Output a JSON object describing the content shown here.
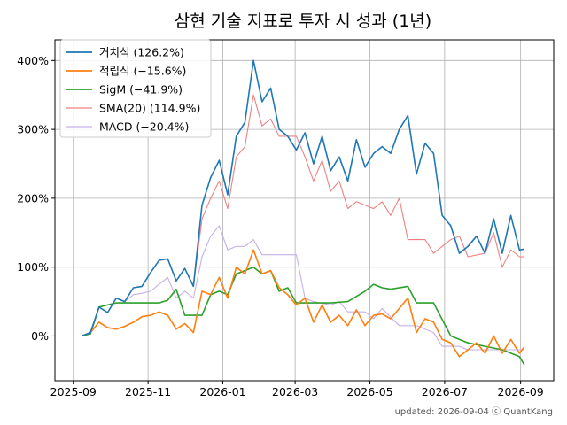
{
  "chart_data": {
    "type": "line",
    "title": "삼현 기술 지표로 투자 시 성과 (1년)",
    "xlabel": "",
    "ylabel": "",
    "x_ticks": [
      "2025-09",
      "2025-11",
      "2026-01",
      "2026-03",
      "2026-05",
      "2026-07",
      "2026-09"
    ],
    "y_ticks": [
      "0%",
      "100%",
      "200%",
      "300%",
      "400%"
    ],
    "ylim": [
      -65,
      430
    ],
    "grid": true,
    "legend_position": "top-left",
    "footer": "updated: 2026-09-04 ⓒ QuantKang",
    "series": [
      {
        "name": "거치식 (126.2%)",
        "color": "#1f77b4",
        "points": [
          [
            "2025-09-08",
            0
          ],
          [
            "2025-09-15",
            5
          ],
          [
            "2025-09-22",
            42
          ],
          [
            "2025-09-29",
            34
          ],
          [
            "2025-10-06",
            55
          ],
          [
            "2025-10-13",
            50
          ],
          [
            "2025-10-20",
            70
          ],
          [
            "2025-10-27",
            72
          ],
          [
            "2025-11-03",
            92
          ],
          [
            "2025-11-10",
            110
          ],
          [
            "2025-11-17",
            112
          ],
          [
            "2025-11-24",
            80
          ],
          [
            "2025-12-01",
            98
          ],
          [
            "2025-12-08",
            72
          ],
          [
            "2025-12-15",
            190
          ],
          [
            "2025-12-22",
            230
          ],
          [
            "2025-12-29",
            255
          ],
          [
            "2026-01-05",
            205
          ],
          [
            "2026-01-12",
            290
          ],
          [
            "2026-01-19",
            310
          ],
          [
            "2026-01-26",
            400
          ],
          [
            "2026-02-02",
            340
          ],
          [
            "2026-02-09",
            360
          ],
          [
            "2026-02-16",
            300
          ],
          [
            "2026-02-23",
            290
          ],
          [
            "2026-03-02",
            270
          ],
          [
            "2026-03-09",
            295
          ],
          [
            "2026-03-16",
            250
          ],
          [
            "2026-03-23",
            290
          ],
          [
            "2026-03-30",
            240
          ],
          [
            "2026-04-06",
            260
          ],
          [
            "2026-04-13",
            225
          ],
          [
            "2026-04-20",
            285
          ],
          [
            "2026-04-27",
            245
          ],
          [
            "2026-05-04",
            265
          ],
          [
            "2026-05-11",
            275
          ],
          [
            "2026-05-18",
            265
          ],
          [
            "2026-05-25",
            300
          ],
          [
            "2026-06-01",
            320
          ],
          [
            "2026-06-08",
            235
          ],
          [
            "2026-06-15",
            280
          ],
          [
            "2026-06-22",
            265
          ],
          [
            "2026-06-29",
            175
          ],
          [
            "2026-07-06",
            160
          ],
          [
            "2026-07-13",
            120
          ],
          [
            "2026-07-20",
            130
          ],
          [
            "2026-07-27",
            145
          ],
          [
            "2026-08-03",
            120
          ],
          [
            "2026-08-10",
            170
          ],
          [
            "2026-08-17",
            120
          ],
          [
            "2026-08-24",
            175
          ],
          [
            "2026-08-31",
            125
          ],
          [
            "2026-09-04",
            126.2
          ]
        ]
      },
      {
        "name": "적립식 (−15.6%)",
        "color": "#ff7f0e",
        "points": [
          [
            "2025-09-08",
            0
          ],
          [
            "2025-09-15",
            5
          ],
          [
            "2025-09-22",
            20
          ],
          [
            "2025-09-29",
            12
          ],
          [
            "2025-10-06",
            10
          ],
          [
            "2025-10-13",
            14
          ],
          [
            "2025-10-20",
            20
          ],
          [
            "2025-10-27",
            28
          ],
          [
            "2025-11-03",
            30
          ],
          [
            "2025-11-10",
            35
          ],
          [
            "2025-11-17",
            30
          ],
          [
            "2025-11-24",
            10
          ],
          [
            "2025-12-01",
            18
          ],
          [
            "2025-12-08",
            5
          ],
          [
            "2025-12-15",
            65
          ],
          [
            "2025-12-22",
            60
          ],
          [
            "2025-12-29",
            85
          ],
          [
            "2026-01-05",
            55
          ],
          [
            "2026-01-12",
            100
          ],
          [
            "2026-01-19",
            90
          ],
          [
            "2026-01-26",
            125
          ],
          [
            "2026-02-02",
            90
          ],
          [
            "2026-02-09",
            95
          ],
          [
            "2026-02-16",
            70
          ],
          [
            "2026-02-23",
            60
          ],
          [
            "2026-03-02",
            45
          ],
          [
            "2026-03-09",
            55
          ],
          [
            "2026-03-16",
            20
          ],
          [
            "2026-03-23",
            45
          ],
          [
            "2026-03-30",
            20
          ],
          [
            "2026-04-06",
            30
          ],
          [
            "2026-04-13",
            15
          ],
          [
            "2026-04-20",
            38
          ],
          [
            "2026-04-27",
            15
          ],
          [
            "2026-05-04",
            30
          ],
          [
            "2026-05-11",
            32
          ],
          [
            "2026-05-18",
            25
          ],
          [
            "2026-05-25",
            40
          ],
          [
            "2026-06-01",
            55
          ],
          [
            "2026-06-08",
            5
          ],
          [
            "2026-06-15",
            25
          ],
          [
            "2026-06-22",
            20
          ],
          [
            "2026-06-29",
            -5
          ],
          [
            "2026-07-06",
            -10
          ],
          [
            "2026-07-13",
            -30
          ],
          [
            "2026-07-20",
            -20
          ],
          [
            "2026-07-27",
            -10
          ],
          [
            "2026-08-03",
            -25
          ],
          [
            "2026-08-10",
            0
          ],
          [
            "2026-08-17",
            -25
          ],
          [
            "2026-08-24",
            -5
          ],
          [
            "2026-08-31",
            -25
          ],
          [
            "2026-09-04",
            -15.6
          ]
        ]
      },
      {
        "name": "SigM (−41.9%)",
        "color": "#2ca02c",
        "points": [
          [
            "2025-09-08",
            0
          ],
          [
            "2025-09-15",
            3
          ],
          [
            "2025-09-22",
            42
          ],
          [
            "2025-09-29",
            45
          ],
          [
            "2025-10-06",
            48
          ],
          [
            "2025-10-20",
            48
          ],
          [
            "2025-11-03",
            48
          ],
          [
            "2025-11-10",
            48
          ],
          [
            "2025-11-17",
            52
          ],
          [
            "2025-11-24",
            68
          ],
          [
            "2025-12-01",
            30
          ],
          [
            "2025-12-15",
            30
          ],
          [
            "2025-12-22",
            60
          ],
          [
            "2025-12-29",
            65
          ],
          [
            "2026-01-05",
            60
          ],
          [
            "2026-01-12",
            90
          ],
          [
            "2026-01-19",
            95
          ],
          [
            "2026-01-26",
            100
          ],
          [
            "2026-02-02",
            90
          ],
          [
            "2026-02-09",
            95
          ],
          [
            "2026-02-16",
            65
          ],
          [
            "2026-02-23",
            70
          ],
          [
            "2026-03-02",
            48
          ],
          [
            "2026-03-30",
            48
          ],
          [
            "2026-04-13",
            50
          ],
          [
            "2026-04-27",
            65
          ],
          [
            "2026-05-04",
            75
          ],
          [
            "2026-05-11",
            70
          ],
          [
            "2026-05-18",
            68
          ],
          [
            "2026-06-01",
            72
          ],
          [
            "2026-06-08",
            48
          ],
          [
            "2026-06-22",
            48
          ],
          [
            "2026-07-06",
            0
          ],
          [
            "2026-07-20",
            -10
          ],
          [
            "2026-08-03",
            -15
          ],
          [
            "2026-08-17",
            -20
          ],
          [
            "2026-08-31",
            -30
          ],
          [
            "2026-09-04",
            -41.9
          ]
        ]
      },
      {
        "name": "SMA(20) (114.9%)",
        "color": "#f08080",
        "points": [
          [
            "2025-09-08",
            0
          ],
          [
            "2025-09-15",
            5
          ],
          [
            "2025-09-22",
            42
          ],
          [
            "2025-09-29",
            34
          ],
          [
            "2025-10-06",
            55
          ],
          [
            "2025-10-13",
            50
          ],
          [
            "2025-10-20",
            70
          ],
          [
            "2025-10-27",
            72
          ],
          [
            "2025-11-03",
            92
          ],
          [
            "2025-11-10",
            110
          ],
          [
            "2025-11-17",
            112
          ],
          [
            "2025-11-24",
            80
          ],
          [
            "2025-12-01",
            98
          ],
          [
            "2025-12-08",
            72
          ],
          [
            "2025-12-15",
            170
          ],
          [
            "2025-12-22",
            200
          ],
          [
            "2025-12-29",
            225
          ],
          [
            "2026-01-05",
            185
          ],
          [
            "2026-01-12",
            260
          ],
          [
            "2026-01-19",
            275
          ],
          [
            "2026-01-26",
            350
          ],
          [
            "2026-02-02",
            305
          ],
          [
            "2026-02-09",
            315
          ],
          [
            "2026-02-16",
            290
          ],
          [
            "2026-03-02",
            290
          ],
          [
            "2026-03-09",
            260
          ],
          [
            "2026-03-16",
            225
          ],
          [
            "2026-03-23",
            255
          ],
          [
            "2026-03-30",
            210
          ],
          [
            "2026-04-06",
            225
          ],
          [
            "2026-04-13",
            185
          ],
          [
            "2026-04-20",
            195
          ],
          [
            "2026-05-04",
            185
          ],
          [
            "2026-05-11",
            195
          ],
          [
            "2026-05-18",
            175
          ],
          [
            "2026-05-25",
            200
          ],
          [
            "2026-06-01",
            140
          ],
          [
            "2026-06-15",
            140
          ],
          [
            "2026-06-22",
            120
          ],
          [
            "2026-07-06",
            140
          ],
          [
            "2026-07-13",
            145
          ],
          [
            "2026-07-20",
            115
          ],
          [
            "2026-08-03",
            120
          ],
          [
            "2026-08-10",
            150
          ],
          [
            "2026-08-17",
            100
          ],
          [
            "2026-08-24",
            125
          ],
          [
            "2026-08-31",
            115
          ],
          [
            "2026-09-04",
            114.9
          ]
        ]
      },
      {
        "name": "MACD (−20.4%)",
        "color": "#c5b0e8",
        "points": [
          [
            "2025-09-08",
            0
          ],
          [
            "2025-09-15",
            5
          ],
          [
            "2025-09-22",
            42
          ],
          [
            "2025-09-29",
            34
          ],
          [
            "2025-10-06",
            55
          ],
          [
            "2025-10-13",
            50
          ],
          [
            "2025-10-20",
            60
          ],
          [
            "2025-10-27",
            62
          ],
          [
            "2025-11-03",
            65
          ],
          [
            "2025-11-10",
            75
          ],
          [
            "2025-11-17",
            85
          ],
          [
            "2025-11-24",
            55
          ],
          [
            "2025-12-01",
            65
          ],
          [
            "2025-12-08",
            55
          ],
          [
            "2025-12-15",
            115
          ],
          [
            "2025-12-22",
            145
          ],
          [
            "2025-12-29",
            160
          ],
          [
            "2026-01-05",
            125
          ],
          [
            "2026-01-12",
            130
          ],
          [
            "2026-01-19",
            130
          ],
          [
            "2026-01-26",
            140
          ],
          [
            "2026-02-02",
            118
          ],
          [
            "2026-02-16",
            118
          ],
          [
            "2026-03-02",
            118
          ],
          [
            "2026-03-09",
            55
          ],
          [
            "2026-03-16",
            50
          ],
          [
            "2026-03-30",
            45
          ],
          [
            "2026-04-06",
            50
          ],
          [
            "2026-04-13",
            35
          ],
          [
            "2026-04-27",
            35
          ],
          [
            "2026-05-04",
            25
          ],
          [
            "2026-05-11",
            40
          ],
          [
            "2026-05-25",
            15
          ],
          [
            "2026-06-08",
            15
          ],
          [
            "2026-06-15",
            10
          ],
          [
            "2026-06-22",
            5
          ],
          [
            "2026-06-29",
            -15
          ],
          [
            "2026-07-13",
            -15
          ],
          [
            "2026-07-20",
            -20
          ],
          [
            "2026-08-03",
            -20
          ],
          [
            "2026-08-17",
            -20
          ],
          [
            "2026-08-31",
            -20
          ],
          [
            "2026-09-04",
            -20.4
          ]
        ]
      }
    ]
  }
}
